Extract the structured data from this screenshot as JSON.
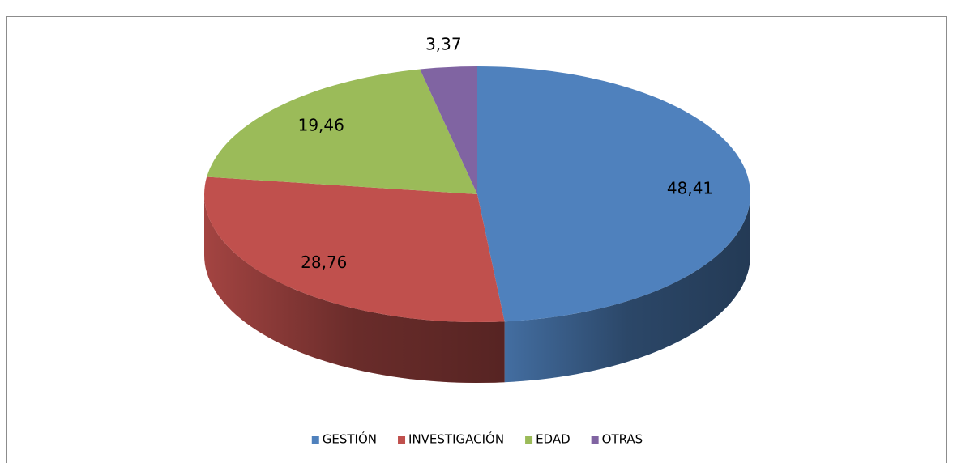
{
  "chart_data": {
    "type": "pie",
    "categories": [
      "GESTIÓN",
      "INVESTIGACIÓN",
      "EDAD",
      "OTRAS"
    ],
    "values": [
      48.41,
      28.76,
      19.46,
      3.37
    ],
    "value_labels": [
      "48,41",
      "28,76",
      "19,46",
      "3,37"
    ],
    "colors": [
      "#4f81bd",
      "#c0504d",
      "#9bbb59",
      "#8064a2"
    ],
    "legend": "bottom"
  }
}
